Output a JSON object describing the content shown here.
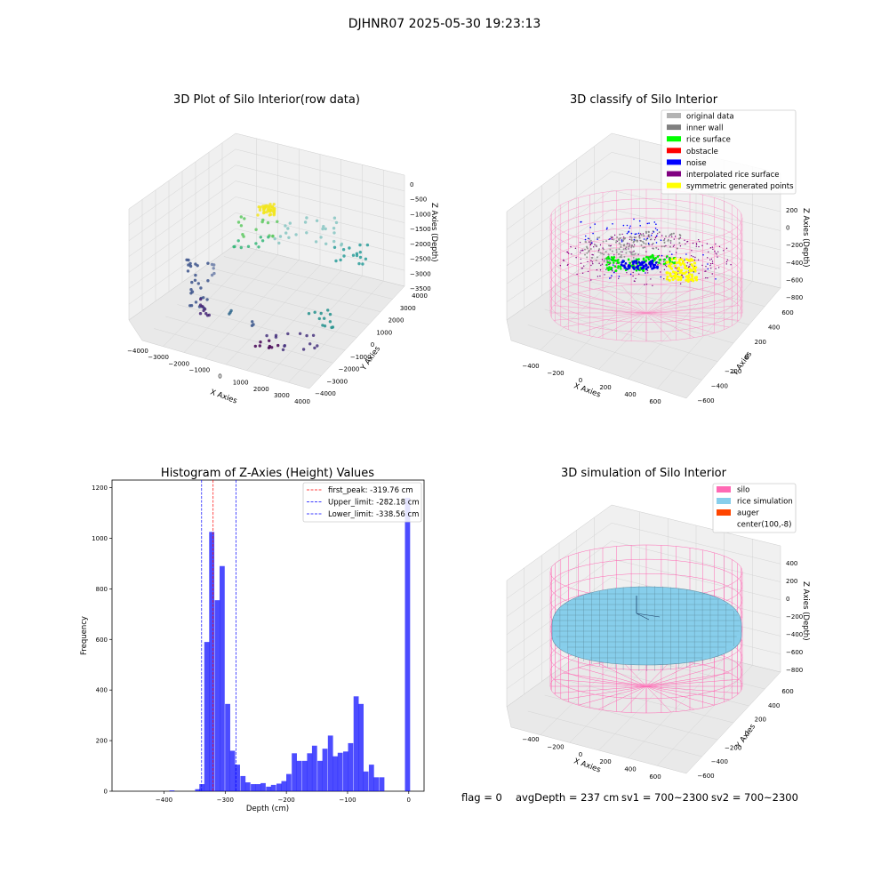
{
  "suptitle": "DJHNR07 2025-05-30 19:23:13",
  "footer": {
    "flag": "flag = 0",
    "avg_depth": "avgDepth = 237 cm",
    "sv1": "sv1 = 700~2300",
    "sv2": "sv2 = 700~2300"
  },
  "plot1": {
    "title": "3D Plot of Silo Interior(row data)",
    "xlabel": "X Axies",
    "ylabel": "Y Axies",
    "zlabel": "Z Axies (Depth)",
    "x_ticks": [
      "−4000",
      "−3000",
      "−2000",
      "−1000",
      "0",
      "1000",
      "2000",
      "3000",
      "4000"
    ],
    "y_ticks": [
      "−4000",
      "−3000",
      "−2000",
      "−1000",
      "0",
      "1000",
      "2000",
      "3000",
      "4000"
    ],
    "z_ticks": [
      "0",
      "−500",
      "−1000",
      "−1500",
      "−2000",
      "−2500",
      "−3000",
      "−3500"
    ]
  },
  "plot2": {
    "title": "3D classify of Silo Interior",
    "xlabel": "X Axies",
    "ylabel": "Y Axies",
    "zlabel": "Z Axies (Depth)",
    "x_ticks": [
      "−400",
      "−200",
      "0",
      "200",
      "400",
      "600"
    ],
    "y_ticks": [
      "−600",
      "−400",
      "−200",
      "0",
      "200",
      "400",
      "600"
    ],
    "z_ticks": [
      "200",
      "0",
      "−200",
      "−400",
      "−600",
      "−800"
    ],
    "legend": [
      {
        "label": "original data",
        "color": "#b3b3b3"
      },
      {
        "label": "inner wall",
        "color": "#808080"
      },
      {
        "label": "rice surface",
        "color": "#00ff00"
      },
      {
        "label": "obstacle",
        "color": "#ff0000"
      },
      {
        "label": "noise",
        "color": "#0000ff"
      },
      {
        "label": "interpolated rice surface",
        "color": "#800080"
      },
      {
        "label": "symmetric generated points",
        "color": "#ffff00"
      }
    ]
  },
  "plot4": {
    "title": "3D simulation of Silo Interior",
    "xlabel": "X Axies",
    "ylabel": "Y Axies",
    "zlabel": "Z Axies (Depth)",
    "x_ticks": [
      "−400",
      "−200",
      "0",
      "200",
      "400",
      "600"
    ],
    "y_ticks": [
      "−600",
      "−400",
      "−200",
      "0",
      "200",
      "400",
      "600"
    ],
    "z_ticks": [
      "400",
      "200",
      "0",
      "−200",
      "−400",
      "−600",
      "−800"
    ],
    "legend": [
      {
        "label": "silo",
        "color": "#ff69b4"
      },
      {
        "label": "rice simulation",
        "color": "#87ceeb"
      },
      {
        "label": "auger",
        "color": "#ff4500"
      },
      {
        "label": "center(100,-8)",
        "color": ""
      }
    ]
  },
  "chart_data": {
    "type": "bar",
    "title": "Histogram of Z-Axies (Height) Values",
    "xlabel": "Depth (cm)",
    "ylabel": "Frequency",
    "xlim": [
      -485,
      25
    ],
    "ylim": [
      0,
      1230
    ],
    "x_ticks": [
      -400,
      -300,
      -200,
      -100,
      0
    ],
    "y_ticks": [
      0,
      200,
      400,
      600,
      800,
      1000,
      1200
    ],
    "bar_color": "#0000ff",
    "bin_width": 8.4,
    "bins": [
      [
        -387,
        3
      ],
      [
        -345,
        8
      ],
      [
        -338,
        28
      ],
      [
        -330,
        590
      ],
      [
        -322,
        1025
      ],
      [
        -313,
        755
      ],
      [
        -305,
        890
      ],
      [
        -296,
        345
      ],
      [
        -288,
        160
      ],
      [
        -280,
        105
      ],
      [
        -271,
        60
      ],
      [
        -263,
        35
      ],
      [
        -254,
        28
      ],
      [
        -246,
        28
      ],
      [
        -238,
        32
      ],
      [
        -229,
        18
      ],
      [
        -221,
        25
      ],
      [
        -212,
        30
      ],
      [
        -204,
        40
      ],
      [
        -196,
        68
      ],
      [
        -187,
        150
      ],
      [
        -179,
        120
      ],
      [
        -170,
        120
      ],
      [
        -162,
        150
      ],
      [
        -154,
        180
      ],
      [
        -145,
        120
      ],
      [
        -137,
        168
      ],
      [
        -128,
        220
      ],
      [
        -120,
        138
      ],
      [
        -112,
        152
      ],
      [
        -103,
        157
      ],
      [
        -95,
        190
      ],
      [
        -86,
        375
      ],
      [
        -78,
        345
      ],
      [
        -70,
        78
      ],
      [
        -61,
        105
      ],
      [
        -53,
        55
      ],
      [
        -44,
        55
      ],
      [
        -36,
        0
      ],
      [
        -27,
        0
      ],
      [
        -19,
        0
      ],
      [
        -10,
        0
      ],
      [
        -2,
        1160
      ]
    ],
    "vlines": [
      {
        "label": "first_peak: -319.76 cm",
        "x": -319.76,
        "color": "#ff0000"
      },
      {
        "label": "Upper_limit: -282.18 cm",
        "x": -282.18,
        "color": "#0000ff"
      },
      {
        "label": "Lower_limit: -338.56 cm",
        "x": -338.56,
        "color": "#0000ff"
      }
    ]
  }
}
